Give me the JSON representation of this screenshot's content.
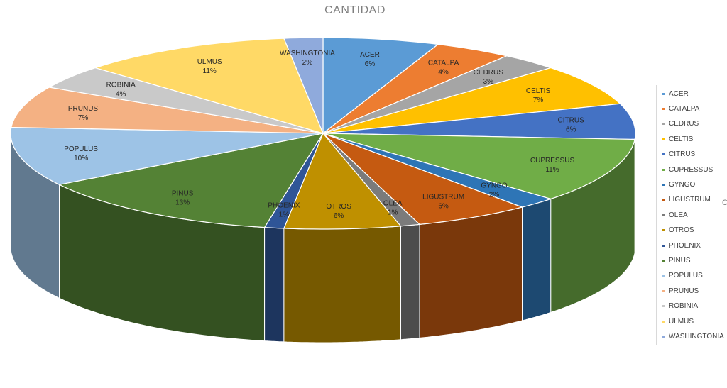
{
  "chart_data": {
    "type": "pie",
    "title": "CANTIDAD",
    "legend_position": "right",
    "slices": [
      {
        "name": "ACER",
        "percent": 6,
        "label": "6%",
        "color": "#5b9bd5"
      },
      {
        "name": "CATALPA",
        "percent": 4,
        "label": "4%",
        "color": "#ed7d31"
      },
      {
        "name": "CEDRUS",
        "percent": 3,
        "label": "3%",
        "color": "#a5a5a5"
      },
      {
        "name": "CELTIS",
        "percent": 7,
        "label": "7%",
        "color": "#ffc000"
      },
      {
        "name": "CITRUS",
        "percent": 6,
        "label": "6%",
        "color": "#4472c4"
      },
      {
        "name": "CUPRESSUS",
        "percent": 11,
        "label": "11%",
        "color": "#70ad47"
      },
      {
        "name": "GYNGO",
        "percent": 2,
        "label": "2%",
        "color": "#2e75b6"
      },
      {
        "name": "LIGUSTRUM",
        "percent": 6,
        "label": "6%",
        "color": "#c55a11"
      },
      {
        "name": "OLEA",
        "percent": 1,
        "label": "1%",
        "color": "#7b7b7b"
      },
      {
        "name": "OTROS",
        "percent": 6,
        "label": "6%",
        "color": "#bf9000"
      },
      {
        "name": "PHOENIX",
        "percent": 1,
        "label": "1%",
        "color": "#2f5597"
      },
      {
        "name": "PINUS",
        "percent": 13,
        "label": "13%",
        "color": "#548235"
      },
      {
        "name": "POPULUS",
        "percent": 10,
        "label": "10%",
        "color": "#9dc3e6"
      },
      {
        "name": "PRUNUS",
        "percent": 7,
        "label": "7%",
        "color": "#f4b183"
      },
      {
        "name": "ROBINIA",
        "percent": 4,
        "label": "4%",
        "color": "#c9c9c9"
      },
      {
        "name": "ULMUS",
        "percent": 11,
        "label": "11%",
        "color": "#ffd966"
      },
      {
        "name": "WASHINGTONIA",
        "percent": 2,
        "label": "2%",
        "color": "#8faadc"
      }
    ]
  },
  "edge_text": "C"
}
